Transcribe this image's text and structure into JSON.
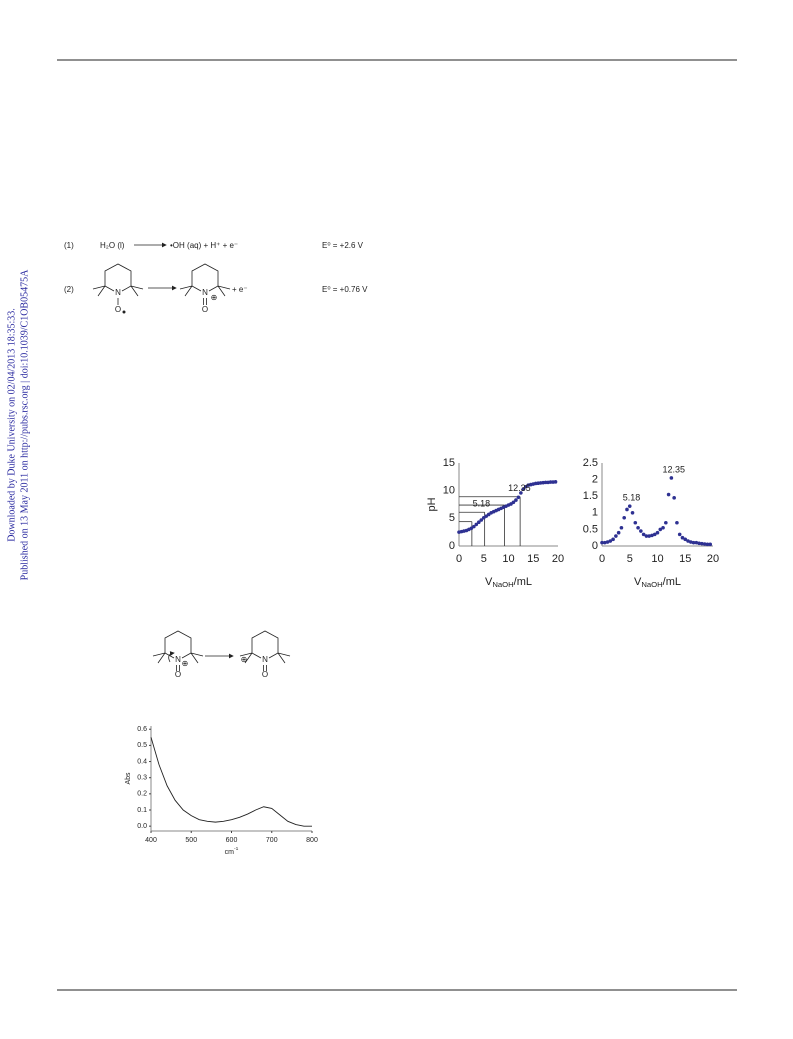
{
  "watermark": {
    "line1": "Downloaded by Duke University on 02/04/2013 18:35:33.",
    "line2": "Published on 13 May 2011 on http://pubs.rsc.org | doi:10.1039/C1OB05475A"
  },
  "scheme1": {
    "num1": "(1)",
    "reactant1": "H₂O (l)",
    "product1": "•OH (aq) + H⁺ + e⁻",
    "e1": "E⁰ = +2.6 V",
    "num2": "(2)",
    "product2": "+  e⁻",
    "e2": "E⁰ = +0.76 V",
    "atoms": [
      "N",
      "O",
      "N",
      "⊕",
      "O"
    ]
  },
  "scheme2": {
    "atoms": [
      "N",
      "⊕",
      "O",
      "⊕",
      "N",
      "O"
    ]
  },
  "chart_data": [
    {
      "type": "scatter",
      "y_label": "pH",
      "x_label": [
        "V",
        "NaOH",
        "/mL"
      ],
      "color": "#2e3192",
      "x": [
        0,
        0.5,
        1,
        1.5,
        2,
        2.5,
        3,
        3.5,
        4,
        4.5,
        5,
        5.5,
        6,
        6.5,
        7,
        7.5,
        8,
        8.5,
        9,
        9.5,
        10,
        10.5,
        11,
        11.5,
        12,
        12.5,
        13,
        13.5,
        14,
        14.5,
        15,
        15.5,
        16,
        16.5,
        17,
        17.5,
        18,
        18.5,
        19,
        19.5
      ],
      "values": [
        2.5,
        2.6,
        2.7,
        2.8,
        3.0,
        3.2,
        3.5,
        3.9,
        4.3,
        4.7,
        5.1,
        5.4,
        5.7,
        6.0,
        6.2,
        6.4,
        6.6,
        6.8,
        7.0,
        7.2,
        7.4,
        7.6,
        7.9,
        8.3,
        8.8,
        9.6,
        10.3,
        10.7,
        11.0,
        11.1,
        11.2,
        11.3,
        11.35,
        11.4,
        11.45,
        11.5,
        11.5,
        11.55,
        11.55,
        11.6
      ],
      "xlim": [
        0,
        20
      ],
      "xticks": [
        0,
        5,
        10,
        15,
        20
      ],
      "ylim": [
        0,
        15
      ],
      "yticks": [
        0,
        5,
        10,
        15
      ],
      "guides": [
        {
          "x": 2.6,
          "y": 4.4
        },
        {
          "x": 5.18,
          "y": 6.1
        },
        {
          "x": 9.2,
          "y": 7.4
        },
        {
          "x": 12.35,
          "y": 8.9
        }
      ],
      "annotations": [
        {
          "label": "5.18",
          "x": 5.18,
          "y": 6.1
        },
        {
          "label": "12.35",
          "x": 12.35,
          "y": 8.9
        }
      ]
    },
    {
      "type": "scatter",
      "x_label": [
        "V",
        "NaOH",
        "/mL"
      ],
      "color": "#2e3192",
      "x": [
        0,
        0.5,
        1,
        1.5,
        2,
        2.5,
        3,
        3.5,
        4,
        4.5,
        5,
        5.5,
        6,
        6.5,
        7,
        7.5,
        8,
        8.5,
        9,
        9.5,
        10,
        10.5,
        11,
        11.5,
        12,
        12.5,
        13,
        13.5,
        14,
        14.5,
        15,
        15.5,
        16,
        16.5,
        17,
        17.5,
        18,
        18.5,
        19,
        19.5
      ],
      "values": [
        0.1,
        0.1,
        0.12,
        0.15,
        0.2,
        0.3,
        0.4,
        0.55,
        0.85,
        1.1,
        1.2,
        1.0,
        0.7,
        0.55,
        0.45,
        0.35,
        0.3,
        0.3,
        0.32,
        0.35,
        0.4,
        0.5,
        0.55,
        0.7,
        1.55,
        2.05,
        1.45,
        0.7,
        0.35,
        0.25,
        0.2,
        0.15,
        0.12,
        0.1,
        0.1,
        0.08,
        0.07,
        0.06,
        0.05,
        0.05
      ],
      "xlim": [
        0,
        20
      ],
      "xticks": [
        0,
        5,
        10,
        15,
        20
      ],
      "ylim": [
        0,
        2.5
      ],
      "yticks": [
        0,
        0.5,
        1,
        1.5,
        2,
        2.5
      ],
      "annotations": [
        {
          "label": "5.18",
          "x": 5.18,
          "y": 1.2
        },
        {
          "label": "12.35",
          "x": 12.35,
          "y": 2.05
        }
      ]
    },
    {
      "type": "line",
      "y_label": "Abs",
      "x_label": [
        "cm",
        "-1"
      ],
      "color": "#222222",
      "x": [
        400,
        420,
        440,
        460,
        480,
        500,
        520,
        540,
        560,
        580,
        600,
        620,
        640,
        660,
        680,
        700,
        720,
        740,
        760,
        780,
        800
      ],
      "values": [
        0.55,
        0.38,
        0.25,
        0.16,
        0.1,
        0.065,
        0.04,
        0.03,
        0.025,
        0.03,
        0.04,
        0.055,
        0.075,
        0.1,
        0.12,
        0.11,
        0.07,
        0.03,
        0.01,
        0.0,
        0.0
      ],
      "xlim": [
        400,
        800
      ],
      "xticks": [
        400,
        500,
        600,
        700,
        800
      ],
      "ylim": [
        -0.03,
        0.62
      ],
      "yticks": [
        {
          "value": 0,
          "label": "0.0"
        },
        0.1,
        0.2,
        0.3,
        0.4,
        0.5,
        0.6
      ]
    }
  ]
}
